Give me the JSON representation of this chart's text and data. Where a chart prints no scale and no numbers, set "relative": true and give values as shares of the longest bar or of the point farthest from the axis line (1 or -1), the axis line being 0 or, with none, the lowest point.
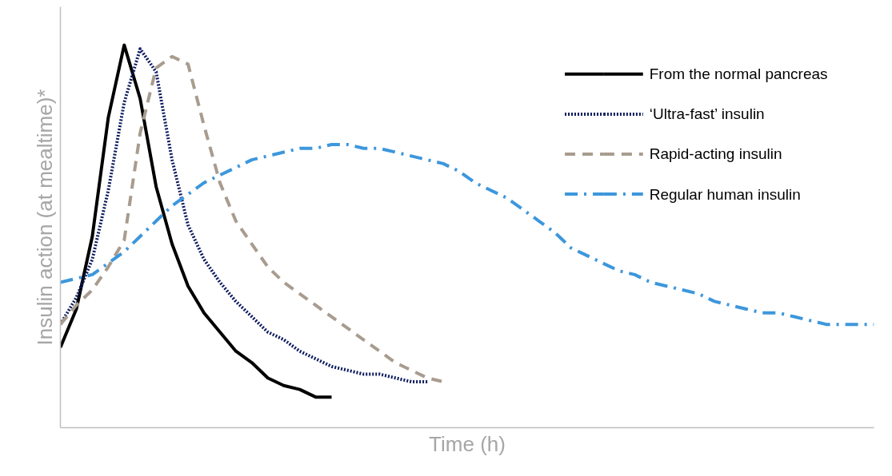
{
  "chart_data": {
    "type": "line",
    "relative": true,
    "xlabel": "Time (h)",
    "ylabel": "Insulin action (at mealtime)*",
    "legend": "top right",
    "tick_labels": false,
    "categories": [
      null,
      null,
      null,
      null,
      null,
      null,
      null,
      null,
      null,
      null,
      null,
      null,
      null,
      null,
      null,
      null,
      null,
      null,
      null,
      null,
      null,
      null,
      null,
      null,
      null,
      null,
      null,
      null,
      null,
      null,
      null,
      null,
      null,
      null,
      null,
      null,
      null,
      null,
      null,
      null,
      null,
      null,
      null,
      null,
      null,
      null,
      null,
      null,
      null,
      null,
      null,
      null
    ],
    "series": [
      {
        "name": "From the normal pancreas",
        "color": "#000000",
        "line_style": "solid",
        "values": [
          0.21,
          0.31,
          0.5,
          0.81,
          1.0,
          0.86,
          0.63,
          0.48,
          0.37,
          0.3,
          0.25,
          0.2,
          0.17,
          0.13,
          0.11,
          0.1,
          0.08,
          0.08,
          null,
          null,
          null,
          null,
          null,
          null,
          null,
          null,
          null,
          null,
          null,
          null,
          null,
          null,
          null,
          null,
          null,
          null,
          null,
          null,
          null,
          null,
          null,
          null,
          null,
          null,
          null,
          null,
          null,
          null,
          null,
          null,
          null,
          null
        ]
      },
      {
        "name": "‘Ultra-fast’ insulin",
        "color": "#0d1b5e",
        "line_style": "dotted",
        "values": [
          0.27,
          0.34,
          0.44,
          0.62,
          0.85,
          0.99,
          0.93,
          0.7,
          0.53,
          0.44,
          0.38,
          0.33,
          0.29,
          0.25,
          0.23,
          0.2,
          0.18,
          0.16,
          0.15,
          0.14,
          0.14,
          0.13,
          0.12,
          0.12,
          null,
          null,
          null,
          null,
          null,
          null,
          null,
          null,
          null,
          null,
          null,
          null,
          null,
          null,
          null,
          null,
          null,
          null,
          null,
          null,
          null,
          null,
          null,
          null,
          null,
          null,
          null,
          null
        ]
      },
      {
        "name": "Rapid-acting insulin",
        "color": "#a89c8f",
        "line_style": "dashed",
        "values": [
          0.27,
          0.32,
          0.36,
          0.42,
          0.49,
          0.77,
          0.94,
          0.97,
          0.95,
          0.79,
          0.64,
          0.54,
          0.48,
          0.42,
          0.38,
          0.35,
          0.32,
          0.29,
          0.26,
          0.23,
          0.2,
          0.17,
          0.15,
          0.13,
          0.12,
          null,
          null,
          null,
          null,
          null,
          null,
          null,
          null,
          null,
          null,
          null,
          null,
          null,
          null,
          null,
          null,
          null,
          null,
          null,
          null,
          null,
          null,
          null,
          null,
          null,
          null,
          null
        ]
      },
      {
        "name": "Regular human insulin",
        "color": "#3d97dc",
        "line_style": "dashdot",
        "values": [
          0.38,
          0.39,
          0.4,
          0.43,
          0.46,
          0.5,
          0.54,
          0.58,
          0.61,
          0.64,
          0.66,
          0.68,
          0.7,
          0.71,
          0.72,
          0.73,
          0.73,
          0.74,
          0.74,
          0.73,
          0.73,
          0.72,
          0.71,
          0.7,
          0.69,
          0.67,
          0.64,
          0.62,
          0.6,
          0.57,
          0.54,
          0.51,
          0.47,
          0.45,
          0.43,
          0.41,
          0.4,
          0.38,
          0.37,
          0.36,
          0.35,
          0.33,
          0.32,
          0.31,
          0.3,
          0.3,
          0.29,
          0.28,
          0.27,
          0.27,
          0.27,
          0.27
        ]
      }
    ]
  }
}
